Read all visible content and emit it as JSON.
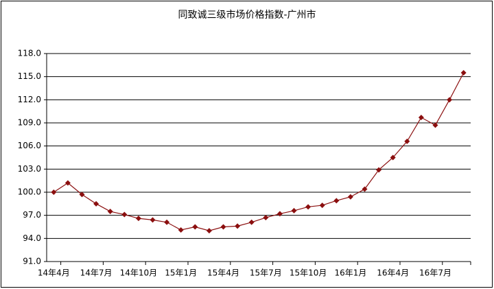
{
  "chart_data": {
    "type": "line",
    "title": "同致诚三级市场价格指数-广州市",
    "categories": [
      "14年4月",
      null,
      null,
      "14年7月",
      null,
      null,
      "14年10月",
      null,
      null,
      "15年1月",
      null,
      null,
      "15年4月",
      null,
      null,
      "15年7月",
      null,
      null,
      "15年10月",
      null,
      null,
      "16年1月",
      null,
      null,
      "16年4月",
      null,
      null,
      "16年7月",
      null,
      null
    ],
    "series": [
      {
        "name": "同致诚三级市场价格指数",
        "color": "#8b0f0f",
        "values": [
          100.0,
          101.2,
          99.7,
          98.5,
          97.5,
          97.1,
          96.6,
          96.4,
          96.1,
          95.1,
          95.5,
          95.0,
          95.5,
          95.6,
          96.1,
          96.7,
          97.2,
          97.6,
          98.1,
          98.3,
          98.9,
          99.4,
          100.4,
          102.9,
          104.5,
          106.6,
          109.7,
          108.7,
          112.0,
          115.5
        ]
      }
    ],
    "ylim": [
      91,
      118
    ],
    "yticks": [
      {
        "value": 91,
        "label": "91.0"
      },
      {
        "value": 94,
        "label": "94.0"
      },
      {
        "value": 97,
        "label": "97.0"
      },
      {
        "value": 100,
        "label": "100.0"
      },
      {
        "value": 103,
        "label": "103.0"
      },
      {
        "value": 106,
        "label": "106.0"
      },
      {
        "value": 109,
        "label": "109.0"
      },
      {
        "value": 112,
        "label": "112.0"
      },
      {
        "value": 115,
        "label": "115.0"
      },
      {
        "value": 118,
        "label": "118.0"
      }
    ],
    "grid": true
  }
}
